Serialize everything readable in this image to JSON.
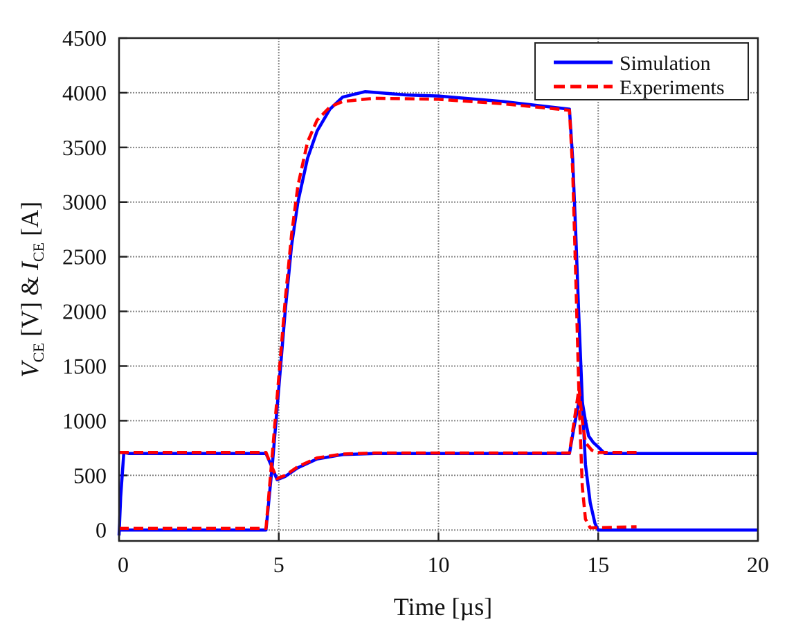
{
  "chart_data": {
    "type": "line",
    "title": "",
    "xlabel": "Time [µs]",
    "ylabel": {
      "v": "V",
      "v_sub": "CE",
      "mid": " [V] & ",
      "i": "I",
      "i_sub": "CE",
      "end": " [A]"
    },
    "xlim": [
      0,
      20
    ],
    "ylim": [
      -100,
      4500
    ],
    "xticks": [
      0,
      5,
      10,
      15,
      20
    ],
    "yticks": [
      0,
      500,
      1000,
      1500,
      2000,
      2500,
      3000,
      3500,
      4000,
      4500
    ],
    "grid": true,
    "legend": {
      "placement": "top-right",
      "entries": [
        "Simulation",
        "Experiments"
      ]
    },
    "series": [
      {
        "name": "Simulation",
        "quantity": "V_CE",
        "color": "#0000ff",
        "style": "solid",
        "x": [
          0,
          0.05,
          0.15,
          0.3,
          4.6,
          4.75,
          4.95,
          5.2,
          5.6,
          6.2,
          7,
          8,
          14.1,
          14.25,
          14.45,
          14.6,
          14.7,
          14.85,
          15.0,
          15.2,
          20
        ],
        "y": [
          -50,
          300,
          710,
          700,
          700,
          600,
          460,
          490,
          570,
          650,
          690,
          700,
          700,
          950,
          1260,
          1000,
          860,
          800,
          760,
          700,
          700
        ]
      },
      {
        "name": "Simulation",
        "quantity": "I_CE",
        "color": "#0000ff",
        "style": "solid",
        "x": [
          0,
          0.2,
          4.6,
          4.8,
          5.0,
          5.2,
          5.4,
          5.6,
          5.9,
          6.2,
          6.6,
          7.0,
          7.7,
          9,
          10,
          12,
          14.1,
          14.2,
          14.3,
          14.4,
          14.5,
          14.6,
          14.75,
          14.9,
          15.0,
          20
        ],
        "y": [
          0,
          0,
          0,
          600,
          1300,
          2000,
          2600,
          3000,
          3400,
          3650,
          3850,
          3960,
          4010,
          3980,
          3970,
          3920,
          3850,
          3400,
          2700,
          1900,
          1200,
          600,
          250,
          60,
          0,
          0
        ]
      },
      {
        "name": "Experiments",
        "quantity": "V_CE",
        "color": "#ff0000",
        "style": "dashed",
        "x": [
          0,
          4.6,
          4.75,
          4.95,
          5.2,
          5.6,
          6.2,
          7,
          8,
          14.1,
          14.25,
          14.4,
          14.5,
          14.6,
          14.8,
          15.0,
          16.2
        ],
        "y": [
          710,
          710,
          600,
          470,
          500,
          580,
          660,
          695,
          705,
          705,
          1000,
          1300,
          1000,
          800,
          730,
          710,
          710
        ]
      },
      {
        "name": "Experiments",
        "quantity": "I_CE",
        "color": "#ff0000",
        "style": "dashed",
        "x": [
          0,
          4.6,
          4.8,
          5.0,
          5.2,
          5.4,
          5.6,
          5.9,
          6.2,
          6.6,
          7.0,
          8,
          10,
          12,
          14.1,
          14.2,
          14.3,
          14.4,
          14.5,
          14.6,
          14.75,
          16.2
        ],
        "y": [
          15,
          15,
          700,
          1400,
          2100,
          2700,
          3150,
          3550,
          3750,
          3870,
          3920,
          3950,
          3940,
          3900,
          3840,
          3300,
          2300,
          1200,
          400,
          100,
          20,
          30
        ]
      }
    ]
  }
}
